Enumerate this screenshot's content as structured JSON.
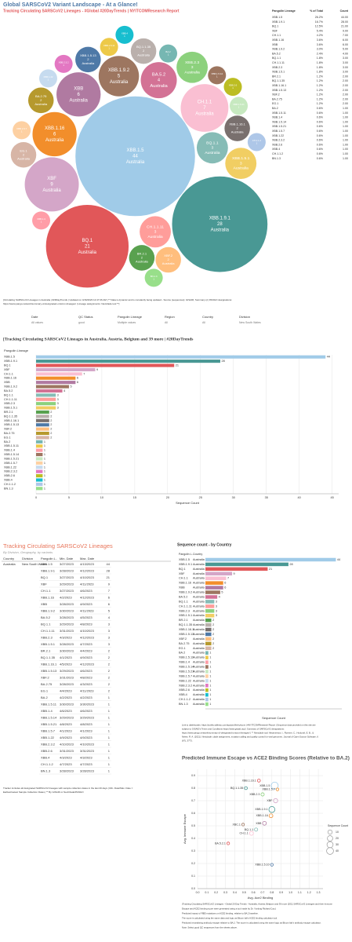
{
  "header": {
    "title": "Global SARSCoV2 Variant Landscape - At a Glance!",
    "subtitle": "Tracking Circulating SARSCoV2 Lineages - #Global #20DayTrends | NYITCOMResearch Report"
  },
  "chart_data": [
    {
      "type": "packed-bubble",
      "country": "Australia",
      "categories": [
        "XBB.1.5",
        "XBB.1.9.1",
        "BQ.1",
        "XBF",
        "CH.1.1",
        "XBB.1.16",
        "XBB",
        "XBB.1.9.2",
        "BA.5.2",
        "BQ.1.1",
        "CH.1.1.11",
        "XBB.2.3",
        "XBB.1.5.1",
        "BR.2.1",
        "BQ.1.1.35",
        "XBB.1.16.1",
        "XBB.1.5.13",
        "XBF.2",
        "BA.2.75",
        "EG.1",
        "BA.2",
        "XBB.1.5.11",
        "XBB.1.4",
        "XBB.1.5.14",
        "XBB.1.5.21",
        "XBB.1.5.7",
        "XBB.1.22",
        "XBB.2.3.2",
        "XBB.2.6",
        "XBB.4",
        "CH.1.1.2",
        "BN.1.3"
      ],
      "values": [
        44,
        28,
        21,
        9,
        7,
        6,
        6,
        5,
        4,
        3,
        3,
        3,
        3,
        2,
        2,
        2,
        2,
        2,
        2,
        2,
        1,
        1,
        1,
        1,
        1,
        1,
        1,
        1,
        1,
        1,
        1,
        1
      ],
      "colors": [
        "#a0cbe8",
        "#499894",
        "#e15759",
        "#d4a6c8",
        "#fabfd2",
        "#f28e2b",
        "#b07aa1",
        "#9d7660",
        "#d37295",
        "#86bcb6",
        "#ff9d9a",
        "#8cd17d",
        "#f1ce63",
        "#59a14f",
        "#bab0ac",
        "#79706e",
        "#4e79a7",
        "#ffbe7d",
        "#b6992d",
        "#d7b5a6",
        "#76b7b2",
        "#edc948",
        "#ff9da7",
        "#9c755f",
        "#c7e9c0",
        "#fdd0a2",
        "#c6dbef",
        "#e377c2",
        "#bcbd22",
        "#17becf",
        "#aec7e8",
        "#98df8a"
      ]
    },
    {
      "type": "bar",
      "title": "[Tracking Circulating SARSCoV2 Lineages in Australia, Austria, Belgium and 39 more | #20DayTrends",
      "y_label": "Pangolin Lineage",
      "x_label": "Sequence Count",
      "grid": true,
      "categories": [
        "XBB.1.5",
        "XBB.1.9.1",
        "BQ.1",
        "XBF",
        "CH.1.1",
        "XBB.1.16",
        "XBB",
        "XBB.1.9.2",
        "BA.5.2",
        "BQ.1.1",
        "CH.1.1.11",
        "XBB.2.3",
        "XBB.1.5.1",
        "BR.2.1",
        "BQ.1.1.35",
        "XBB.1.16.1",
        "XBB.1.5.13",
        "XBF.2",
        "BA.2.75",
        "EG.1",
        "BA.2",
        "XBB.1.5.11",
        "XBB.1.4",
        "XBB.1.5.14",
        "XBB.1.5.21",
        "XBB.1.5.7",
        "XBB.1.22",
        "XBB.2.3.2",
        "XBB.2.6",
        "XBB.4",
        "CH.1.1.2",
        "BN.1.3"
      ],
      "values": [
        44,
        28,
        21,
        9,
        7,
        6,
        6,
        5,
        4,
        3,
        3,
        3,
        3,
        2,
        2,
        2,
        2,
        2,
        2,
        2,
        1,
        1,
        1,
        1,
        1,
        1,
        1,
        1,
        1,
        1,
        1,
        1
      ],
      "colors": [
        "#a0cbe8",
        "#499894",
        "#e15759",
        "#d4a6c8",
        "#fabfd2",
        "#f28e2b",
        "#b07aa1",
        "#9d7660",
        "#d37295",
        "#86bcb6",
        "#ff9d9a",
        "#8cd17d",
        "#f1ce63",
        "#59a14f",
        "#bab0ac",
        "#79706e",
        "#4e79a7",
        "#ffbe7d",
        "#b6992d",
        "#d7b5a6",
        "#76b7b2",
        "#edc948",
        "#ff9da7",
        "#9c755f",
        "#c7e9c0",
        "#fdd0a2",
        "#c6dbef",
        "#e377c2",
        "#bcbd22",
        "#17becf",
        "#aec7e8",
        "#98df8a"
      ],
      "xlim": [
        0,
        46
      ],
      "xticks": [
        0,
        5,
        10,
        15,
        20,
        25,
        30,
        35,
        40,
        45
      ]
    },
    {
      "type": "bar",
      "title": "Sequence count - by Country",
      "headers": [
        "Pangolin L..",
        "Country"
      ],
      "country": "Australia",
      "x_label": "Sequence Count",
      "grid": false,
      "categories": [
        "XBB.1.5",
        "XBB.1.9.1",
        "BQ.1",
        "XBF",
        "CH.1.1",
        "XBB.1.16",
        "XBB",
        "XBB.1.9.2",
        "BA.5.2",
        "BQ.1.1",
        "CH.1.1.11",
        "XBB.2.3",
        "XBB.1.5.1",
        "BR.2.1",
        "BQ.1.1.35",
        "XBB.1.16.1",
        "XBB.1.5.13",
        "XBF.2",
        "BA.2.75",
        "EG.1",
        "BA.2",
        "XBB.1.5.11",
        "XBB.1.4",
        "XBB.1.5.14",
        "XBB.1.5.21",
        "XBB.1.5.7",
        "XBB.1.22",
        "XBB.2.3.2",
        "XBB.2.6",
        "XBB.4",
        "CH.1.1.2",
        "BN.1.3"
      ],
      "values": [
        44,
        28,
        21,
        9,
        7,
        6,
        6,
        5,
        4,
        3,
        3,
        3,
        3,
        2,
        2,
        2,
        2,
        2,
        2,
        2,
        1,
        1,
        1,
        1,
        1,
        1,
        1,
        1,
        1,
        1,
        1,
        1
      ],
      "colors": [
        "#a0cbe8",
        "#499894",
        "#e15759",
        "#d4a6c8",
        "#fabfd2",
        "#f28e2b",
        "#b07aa1",
        "#9d7660",
        "#d37295",
        "#86bcb6",
        "#ff9d9a",
        "#8cd17d",
        "#f1ce63",
        "#59a14f",
        "#bab0ac",
        "#79706e",
        "#4e79a7",
        "#ffbe7d",
        "#b6992d",
        "#d7b5a6",
        "#76b7b2",
        "#edc948",
        "#ff9da7",
        "#9c755f",
        "#c7e9c0",
        "#fdd0a2",
        "#c6dbef",
        "#e377c2",
        "#bcbd22",
        "#17becf",
        "#aec7e8",
        "#98df8a"
      ],
      "xlim": [
        0,
        46
      ]
    },
    {
      "type": "scatter",
      "title": "Predicted Immune Escape vs ACE2 Binding Scores (Relative to BA.2)",
      "x_label": "Avg. Ace2 Binding",
      "y_label": "Avg. Immune Escape",
      "grid": true,
      "categories": [
        "XBB.1.16.1",
        "BQ.1.1.35",
        "XBB.1.5",
        "XBB.1.5.7",
        "XBB.2.3",
        "XBF",
        "XBB.1.9.1",
        "XBB.1.16",
        "XBB",
        "XBC.1",
        "BQ.1.1",
        "CH.1.1",
        "BA.5.2.1",
        "XBB.1.5.10"
      ],
      "x": [
        0.66,
        0.52,
        0.83,
        0.86,
        0.7,
        0.84,
        0.8,
        0.79,
        0.72,
        0.49,
        0.63,
        0.58,
        0.33,
        0.8
      ],
      "values": [
        0.86,
        0.8,
        0.82,
        0.79,
        0.75,
        0.7,
        0.63,
        0.58,
        0.52,
        0.51,
        0.47,
        0.44,
        0.36,
        0.19
      ],
      "sizes": [
        2,
        2,
        44,
        1,
        3,
        9,
        28,
        6,
        6,
        1,
        3,
        7,
        1,
        1
      ],
      "colors": [
        "#e15759",
        "#499894",
        "#a0cbe8",
        "#f28e2b",
        "#8cd17d",
        "#d4a6c8",
        "#499894",
        "#f28e2b",
        "#b07aa1",
        "#9d7660",
        "#86bcb6",
        "#fabfd2",
        "#e15759",
        "#4e79a7"
      ],
      "size_legend": {
        "title": "Sequence Count",
        "values": [
          10,
          20,
          30,
          40
        ]
      },
      "xlim": [
        0,
        1.35
      ],
      "xticks": [
        {
          "value": 0,
          "label": "0.0"
        },
        0.1,
        0.2,
        0.3,
        0.4,
        0.5,
        0.6,
        0.7,
        0.8,
        0.9,
        {
          "value": 1,
          "label": "1.0"
        },
        1.1,
        1.2,
        1.3
      ],
      "ylim": [
        0,
        0.95
      ],
      "yticks": [
        {
          "value": 0,
          "label": "0.0"
        },
        0.1,
        0.2,
        0.3,
        0.4,
        0.5,
        0.6,
        0.7,
        0.8,
        0.9
      ]
    }
  ],
  "lineage_table": {
    "headers": [
      "Pangolin Lineage",
      "% of Total",
      "Count"
    ],
    "rows": [
      [
        "XBB.1.5",
        "26.2%",
        "44.00"
      ],
      [
        "XBB.1.9.1",
        "16.7%",
        "28.00"
      ],
      [
        "BQ.1",
        "12.5%",
        "21.00"
      ],
      [
        "XBF",
        "5.4%",
        "9.00"
      ],
      [
        "CH.1.1",
        "4.2%",
        "7.00"
      ],
      [
        "XBB.1.16",
        "3.6%",
        "6.00"
      ],
      [
        "XBB",
        "3.6%",
        "6.00"
      ],
      [
        "XBB.1.9.2",
        "3.0%",
        "5.00"
      ],
      [
        "BA.5.2",
        "2.4%",
        "4.00"
      ],
      [
        "BQ.1.1",
        "1.8%",
        "3.00"
      ],
      [
        "CH.1.1.11",
        "1.8%",
        "3.00"
      ],
      [
        "XBB.2.3",
        "1.8%",
        "3.00"
      ],
      [
        "XBB.1.5.1",
        "1.8%",
        "3.00"
      ],
      [
        "BR.2.1",
        "1.2%",
        "2.00"
      ],
      [
        "BQ.1.1.35",
        "1.2%",
        "2.00"
      ],
      [
        "XBB.1.16.1",
        "1.2%",
        "2.00"
      ],
      [
        "XBB.1.5.13",
        "1.2%",
        "2.00"
      ],
      [
        "XBF.2",
        "1.2%",
        "2.00"
      ],
      [
        "BA.2.75",
        "1.2%",
        "2.00"
      ],
      [
        "EG.1",
        "1.2%",
        "2.00"
      ],
      [
        "BA.2",
        "0.6%",
        "1.00"
      ],
      [
        "XBB.1.5.11",
        "0.6%",
        "1.00"
      ],
      [
        "XBB.1.4",
        "0.6%",
        "1.00"
      ],
      [
        "XBB.1.5.14",
        "0.6%",
        "1.00"
      ],
      [
        "XBB.1.5.21",
        "0.6%",
        "1.00"
      ],
      [
        "XBB.1.5.7",
        "0.6%",
        "1.00"
      ],
      [
        "XBB.1.22",
        "0.6%",
        "1.00"
      ],
      [
        "XBB.2.3.2",
        "0.6%",
        "1.00"
      ],
      [
        "XBB.2.6",
        "0.6%",
        "1.00"
      ],
      [
        "XBB.4",
        "0.6%",
        "1.00"
      ],
      [
        "CH.1.1.2",
        "0.6%",
        "1.00"
      ],
      [
        "BN.1.3",
        "0.6%",
        "1.00"
      ]
    ]
  },
  "notes": {
    "top": [
      "[Circulating SARSCoV2 Lineages in Australia | #20DayTrends | Updated on 4/16/2023 12:47:26 AM | ** Data is dynamic and is constantly being updated - Source (sequences): GISAID; Summary (c) PANGO designations:",
      "https://www.pango.network/summary-of-designated-omicron-lineages/ | Lineage assignments: Nextclade tool **]"
    ]
  },
  "filters": [
    {
      "label": "Date",
      "value": "All values"
    },
    {
      "label": "QC Status",
      "value": "good"
    },
    {
      "label": "Pangolin Lineage",
      "value": "Multiple values"
    },
    {
      "label": "Region",
      "value": "All"
    },
    {
      "label": "Country",
      "value": "All"
    },
    {
      "label": "Division",
      "value": "New South Wales"
    }
  ],
  "sequence_table": {
    "title": "Tracking Circulating SARSCoV2 Lineages",
    "subtitle": "By Division, Geography, by variants",
    "headers": [
      "Country",
      "Division",
      "Pangolin L..",
      "Min. Date",
      "Max. Date"
    ],
    "country": "Australia",
    "division": "New South Wales",
    "rows": [
      [
        "XBB.1.5",
        "3/27/2023",
        "4/13/2023",
        "44"
      ],
      [
        "XBB.1.9.1",
        "3/28/2023",
        "4/12/2023",
        "28"
      ],
      [
        "BQ.1",
        "3/27/2023",
        "4/10/2023",
        "21"
      ],
      [
        "XBF",
        "3/29/2023",
        "4/11/2023",
        "9"
      ],
      [
        "CH.1.1",
        "3/27/2023",
        "4/6/2023",
        "7"
      ],
      [
        "XBB.1.16",
        "4/2/2023",
        "4/12/2023",
        "6"
      ],
      [
        "XBB",
        "3/28/2023",
        "4/9/2023",
        "6"
      ],
      [
        "XBB.1.9.2",
        "3/30/2023",
        "4/11/2023",
        "5"
      ],
      [
        "BA.5.2",
        "3/28/2023",
        "4/5/2023",
        "4"
      ],
      [
        "BQ.1.1",
        "3/29/2023",
        "4/8/2023",
        "3"
      ],
      [
        "CH.1.1.11",
        "3/31/2023",
        "4/10/2023",
        "3"
      ],
      [
        "XBB.2.3",
        "4/3/2023",
        "4/12/2023",
        "3"
      ],
      [
        "XBB.1.5.1",
        "3/28/2023",
        "4/7/2023",
        "3"
      ],
      [
        "BR.2.1",
        "3/30/2023",
        "4/4/2023",
        "2"
      ],
      [
        "BQ.1.1.35",
        "4/1/2023",
        "4/9/2023",
        "2"
      ],
      [
        "XBB.1.16.1",
        "4/5/2023",
        "4/12/2023",
        "2"
      ],
      [
        "XBB.1.5.13",
        "3/29/2023",
        "4/6/2023",
        "2"
      ],
      [
        "XBF.2",
        "3/31/2023",
        "4/8/2023",
        "2"
      ],
      [
        "BA.2.75",
        "3/28/2023",
        "4/3/2023",
        "2"
      ],
      [
        "EG.1",
        "4/4/2023",
        "4/11/2023",
        "2"
      ],
      [
        "BA.2",
        "4/2/2023",
        "4/2/2023",
        "1"
      ],
      [
        "XBB.1.5.11",
        "3/30/2023",
        "3/30/2023",
        "1"
      ],
      [
        "XBB.1.4",
        "4/6/2023",
        "4/6/2023",
        "1"
      ],
      [
        "XBB.1.5.14",
        "3/29/2023",
        "3/29/2023",
        "1"
      ],
      [
        "XBB.1.5.21",
        "4/8/2023",
        "4/8/2023",
        "1"
      ],
      [
        "XBB.1.5.7",
        "4/1/2023",
        "4/1/2023",
        "1"
      ],
      [
        "XBB.1.22",
        "4/9/2023",
        "4/9/2023",
        "1"
      ],
      [
        "XBB.2.3.2",
        "4/10/2023",
        "4/10/2023",
        "1"
      ],
      [
        "XBB.2.6",
        "3/31/2023",
        "3/31/2023",
        "1"
      ],
      [
        "XBB.4",
        "4/3/2023",
        "4/3/2023",
        "1"
      ],
      [
        "CH.1.1.2",
        "4/7/2023",
        "4/7/2023",
        "1"
      ],
      [
        "BN.1.3",
        "3/28/2023",
        "3/28/2023",
        "1"
      ]
    ],
    "note": [
      "Tracker includes all designated SARSCoV2 lineages with sample collection dates in the last 20 days | Min. Date/Max. Date =",
      "Earliest/Latest Sample Collection Dates | ** By GISAID or NextClade/PANGO"
    ]
  },
  "links": [
    "Link to dashboards: https://public.tableau.com/app/profile/nyitcom | #NYITCOMResearch Report | Sequence data provided on this site are",
    "subject to GISAID's Terms and Conditions https://www.gisaid.org/ | Summary of SARSCoV2 designations:",
    "https://www.pango.network/summary-of-designated-omicron-lineages/ | ** Nextclade tool: Aksamentov, I., Roemer, C., Hodcroft, E. B., &",
    "Neher, R. A. (2021). Nextclade: clade assignment, mutation calling and quality control for viral genomes. Journal of Open Source Software, 6",
    "(67), 3773."
  ],
  "footnotes": [
    "(Tracking Circulating SARSCoV2 Lineages - Global 20 Day Trends - Australia, Austria, Belgium and 39 more (2011 SARSCoV2 Lineages and their Immune",
    "Escape and ACE2 binding score were generated using a tool made by Dr. Yunlong Richard Cao.)",
    "Predicted impact of RBD mutations on ACE2 binding, relative to BA.2 baseline.",
    "The score is calculated using the same data and logic as Bloom lab's ACE2 binding calculator tool.",
    "Predicted neutralizing antibody escape relative to BA.2. The score is calculated using the same logic as Bloom lab's antibody escape calculator.",
    "Note: Select good QC sequences from the sheets above."
  ]
}
